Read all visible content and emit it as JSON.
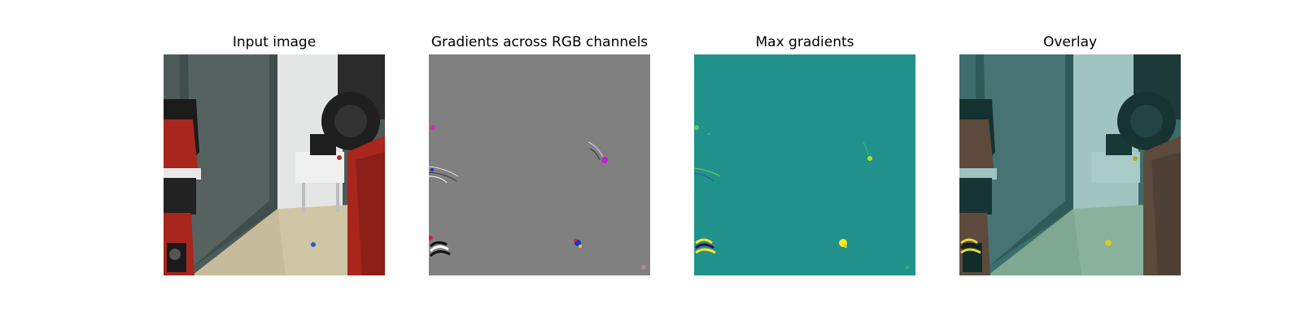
{
  "figure": {
    "panels": [
      {
        "title": "Input image"
      },
      {
        "title": "Gradients across RGB channels"
      },
      {
        "title": "Max gradients"
      },
      {
        "title": "Overlay"
      }
    ]
  },
  "colors": {
    "background": "#ffffff",
    "gradient_gray": "#808080",
    "viridis_teal": "#21918c",
    "viridis_yellow": "#fde725",
    "robot_red": "#a8261c",
    "floor_beige": "#cfc6a6"
  }
}
